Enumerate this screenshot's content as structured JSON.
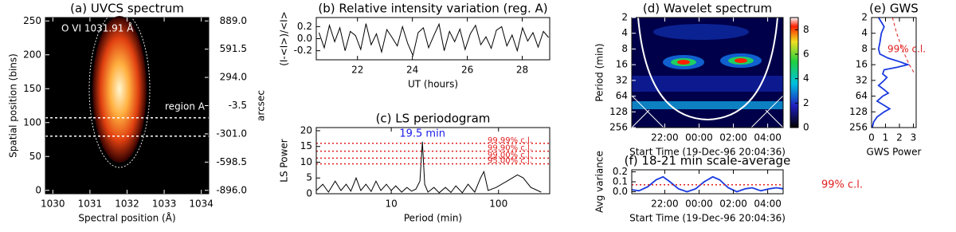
{
  "chart_data": [
    {
      "type": "image",
      "title": "(a) UVCS spectrum",
      "xlabel": "Spectral position (Å)",
      "ylabel": "Spatial position (bins)",
      "y2label": "arcsec",
      "annotations": [
        "O VI 1031.91 Å",
        "region A"
      ],
      "xlim": [
        1029.8,
        1034.2
      ],
      "xticks": [
        1030,
        1031,
        1032,
        1033,
        1034
      ],
      "ylim": [
        -5,
        255
      ],
      "yticks": [
        0,
        50,
        100,
        150,
        200,
        250
      ],
      "y2lim": [
        -931.7,
        924.7
      ],
      "y2ticks": [
        {
          "value": 889,
          "label": "889.0"
        },
        591.5,
        {
          "value": 294,
          "label": "294.0"
        },
        -3.5,
        {
          "value": -301,
          "label": "-301.0"
        },
        -598.5,
        {
          "value": -896,
          "label": "-896.0"
        }
      ],
      "region_lines": [
        80,
        107
      ]
    },
    {
      "type": "line",
      "title": "(b) Relative intensity variation (reg. A)",
      "xlabel": "UT (hours)",
      "ylabel": "(I-<I>)/<I>",
      "xlim": [
        20.5,
        29
      ],
      "xticks": [
        22,
        24,
        26,
        28
      ],
      "ylim": [
        -0.35,
        0.35
      ],
      "yticks": [
        -0.2,
        {
          "value": 0,
          "label": "0.0"
        },
        0.2
      ],
      "series": [
        {
          "color": "#000000",
          "x": [
            20.6,
            20.79,
            20.98,
            21.17,
            21.36,
            21.55,
            21.74,
            21.93,
            22.12,
            22.31,
            22.5,
            22.69,
            22.88,
            23.07,
            23.26,
            23.45,
            23.64,
            23.83,
            24.02,
            24.21,
            24.4,
            24.59,
            24.78,
            24.97,
            25.16,
            25.35,
            25.54,
            25.73,
            25.92,
            26.11,
            26.3,
            26.49,
            26.68,
            26.87,
            27.06,
            27.25,
            27.44,
            27.63,
            27.82,
            28.01,
            28.2,
            28.39,
            28.58,
            28.77,
            28.96
          ],
          "values": [
            0.1,
            -0.15,
            0.22,
            -0.05,
            0.18,
            -0.2,
            0.12,
            0.05,
            -0.18,
            0.25,
            -0.1,
            0.08,
            -0.22,
            0.15,
            0.02,
            -0.12,
            0.2,
            -0.08,
            -0.28,
            0.1,
            0.18,
            -0.15,
            0.05,
            0.24,
            -0.2,
            0.12,
            -0.05,
            0.16,
            -0.18,
            0.08,
            0.22,
            -0.1,
            0.03,
            -0.16,
            0.14,
            0.2,
            -0.12,
            0.06,
            -0.2,
            0.18,
            -0.04,
            0.1,
            -0.14,
            0.12,
            0.02
          ]
        }
      ]
    },
    {
      "type": "line",
      "title": "(c) LS periodogram",
      "xlabel": "Period (min)",
      "ylabel": "LS Power",
      "xlog": true,
      "xlim": [
        2,
        300
      ],
      "xticks": [
        10,
        100
      ],
      "ylim": [
        0,
        21
      ],
      "yticks": [
        0,
        5,
        10,
        15,
        20
      ],
      "annotations": [
        "19.5 min"
      ],
      "annotation_color": "#1a1aee",
      "threshold_color": "#e02020",
      "thresholds": [
        {
          "label": "99.99% c.l.",
          "value": 16
        },
        {
          "label": "99.90% c.l.",
          "value": 13.5
        },
        {
          "label": "99.00% c.l.",
          "value": 11.3
        },
        {
          "label": "95.00% c.l.",
          "value": 9.5
        }
      ],
      "series": [
        {
          "color": "#000000",
          "x": [
            2,
            2.3,
            2.6,
            3,
            3.4,
            3.8,
            4.2,
            4.7,
            5.2,
            5.8,
            6.5,
            7.2,
            8,
            9,
            10,
            11,
            12.5,
            14,
            15.5,
            17,
            18.5,
            19.5,
            20.5,
            22,
            25,
            28,
            32,
            36,
            40,
            46,
            52,
            60,
            68,
            73,
            80,
            95,
            120,
            150,
            170,
            200,
            250
          ],
          "values": [
            1,
            3,
            0.5,
            4,
            1,
            3,
            0.8,
            5,
            1,
            3,
            0.7,
            4,
            1,
            3,
            1,
            2.5,
            0.5,
            2,
            0.8,
            1.5,
            4,
            16.5,
            3,
            0.5,
            2,
            0.3,
            2,
            0.4,
            2.5,
            0.3,
            3,
            0.5,
            5,
            7,
            1,
            2,
            4,
            6,
            5,
            2,
            0.5
          ]
        }
      ]
    },
    {
      "type": "heatmap",
      "title": "(d) Wavelet spectrum",
      "xlabel": "Start Time (19-Dec-96 20:04:36)",
      "ylabel": "Period (min)",
      "xlim": [
        20.077,
        28.9
      ],
      "xticks": [
        {
          "value": 22,
          "label": "22:00"
        },
        {
          "value": 24,
          "label": "00:00"
        },
        {
          "value": 26,
          "label": "02:00"
        },
        {
          "value": 28,
          "label": "04:00"
        }
      ],
      "ylog": true,
      "ylim": [
        256,
        2
      ],
      "yticks": [
        2,
        4,
        8,
        16,
        32,
        64,
        128,
        256
      ],
      "colorbar": {
        "lim": [
          0,
          9
        ],
        "ticks": [
          0,
          2,
          4,
          6,
          8
        ]
      }
    },
    {
      "type": "line",
      "orientation": "horizontal",
      "title": "(e) GWS",
      "xlabel": "GWS Power",
      "xlim": [
        0,
        3.2
      ],
      "xticks": [
        0,
        1,
        2,
        3
      ],
      "ylog": true,
      "ylim": [
        256,
        2
      ],
      "yticks": [
        2,
        4,
        8,
        16,
        32,
        64,
        128,
        256
      ],
      "series": [
        {
          "color": "#1a3ae0",
          "period": [
            2,
            3,
            4,
            6,
            8,
            10,
            12,
            14,
            16,
            18,
            20,
            24,
            28,
            32,
            40,
            48,
            56,
            64,
            80,
            96,
            112,
            128,
            160,
            200,
            256
          ],
          "values": [
            0.5,
            0.9,
            0.7,
            0.6,
            0.5,
            0.6,
            1.2,
            2.0,
            2.6,
            1.8,
            0.9,
            0.8,
            1.1,
            0.9,
            0.5,
            0.9,
            1.2,
            0.8,
            0.4,
            0.9,
            1.3,
            0.9,
            0.4,
            0.15,
            0.05
          ]
        },
        {
          "color": "#e02020",
          "dash": true,
          "label": "99% c.l.",
          "period": [
            2,
            4,
            8,
            16,
            24
          ],
          "values": [
            1.5,
            1.8,
            2.2,
            2.7,
            3.1
          ]
        }
      ]
    },
    {
      "type": "line",
      "title": "(f) 18-21 min scale-average",
      "xlabel": "Start Time (19-Dec-96 20:04:36)",
      "ylabel": "Avg variance",
      "xlim": [
        20.077,
        28.9
      ],
      "xticks": [
        {
          "value": 22,
          "label": "22:00"
        },
        {
          "value": 24,
          "label": "00:00"
        },
        {
          "value": 26,
          "label": "02:00"
        },
        {
          "value": 28,
          "label": "04:00"
        }
      ],
      "ylim": [
        -0.02,
        0.22
      ],
      "yticks": [
        {
          "value": 0,
          "label": "0.0"
        },
        0.1,
        0.2
      ],
      "threshold_color": "#e02020",
      "thresholds": [
        {
          "label": "99% c.l.",
          "value": 0.07
        }
      ],
      "series": [
        {
          "color": "#1a3ae0",
          "x": [
            20.08,
            20.5,
            21,
            21.5,
            21.9,
            22.3,
            22.8,
            23.3,
            23.8,
            24.3,
            24.8,
            25.2,
            25.7,
            26.2,
            26.7,
            27.1,
            27.6,
            28.1,
            28.5,
            28.9
          ],
          "values": [
            0.02,
            0.01,
            0.05,
            0.12,
            0.15,
            0.1,
            0.03,
            0,
            0.03,
            0.1,
            0.15,
            0.12,
            0.04,
            0,
            0.03,
            0.04,
            0.01,
            0.03,
            0.04,
            0.03
          ]
        }
      ]
    }
  ]
}
